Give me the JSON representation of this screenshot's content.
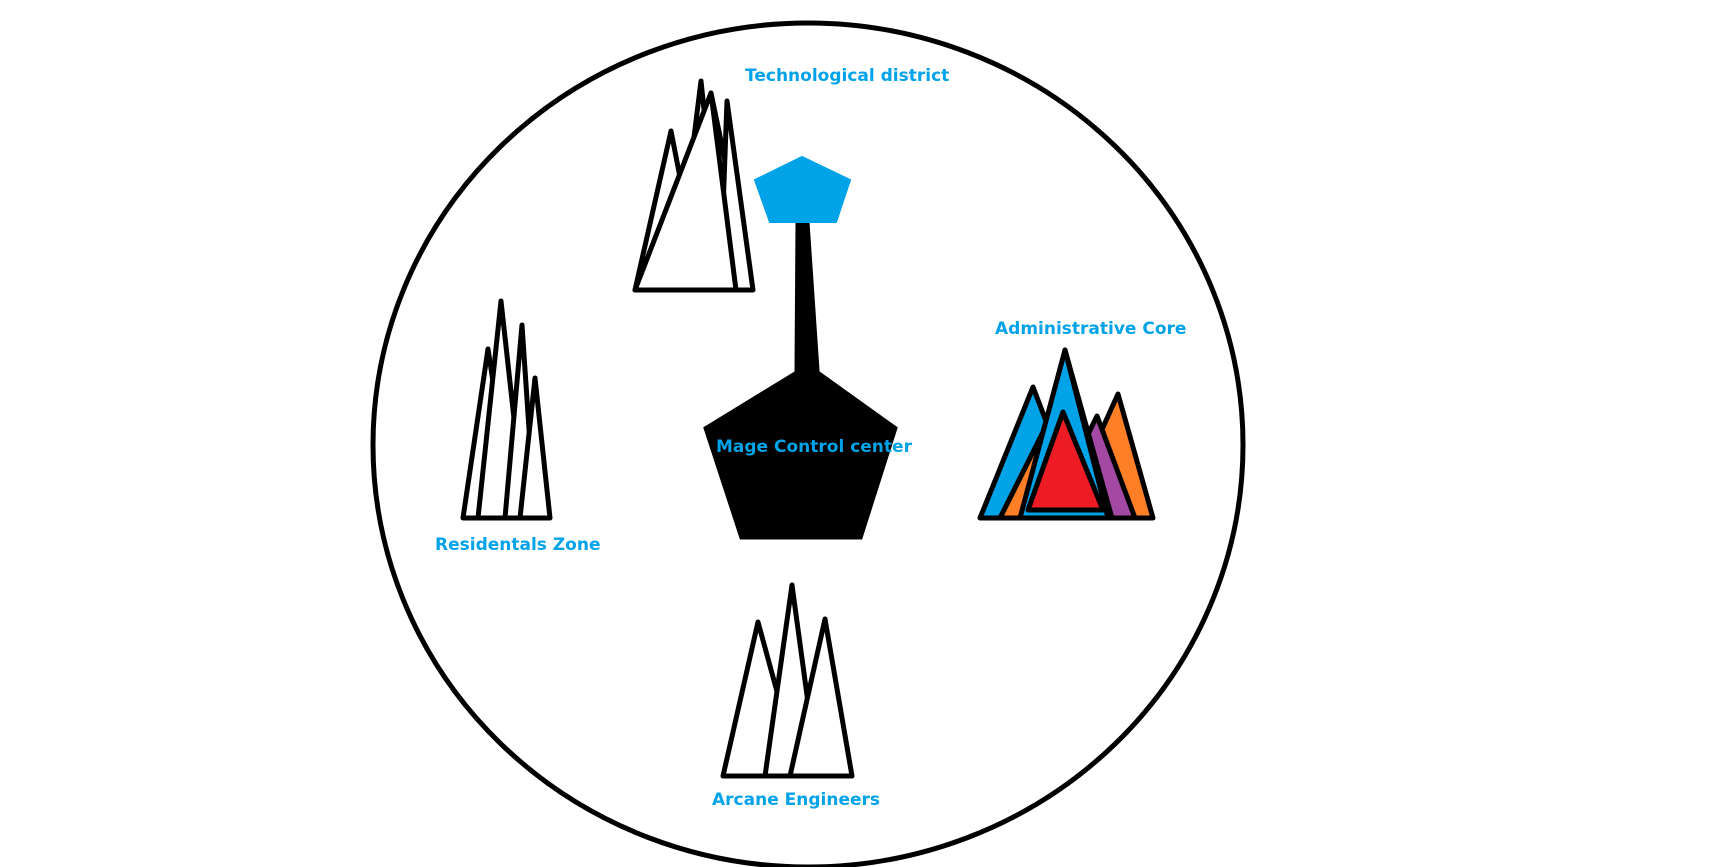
{
  "diagram": {
    "center_label": "Mage Control center",
    "districts": {
      "technological": "Technological district",
      "administrative": "Administrative Core",
      "residential": "Residentals Zone",
      "arcane": "Arcane Engineers"
    }
  },
  "colors": {
    "label_blue": "#00A2E8",
    "outline": "#000000",
    "core_fill": "#000000",
    "beacon_blue": "#00A2E8",
    "admin_blue": "#00A2E8",
    "admin_orange": "#FF7F27",
    "admin_lime": "#B5E61D",
    "admin_red": "#ED1C24",
    "admin_purple": "#A349A4"
  }
}
